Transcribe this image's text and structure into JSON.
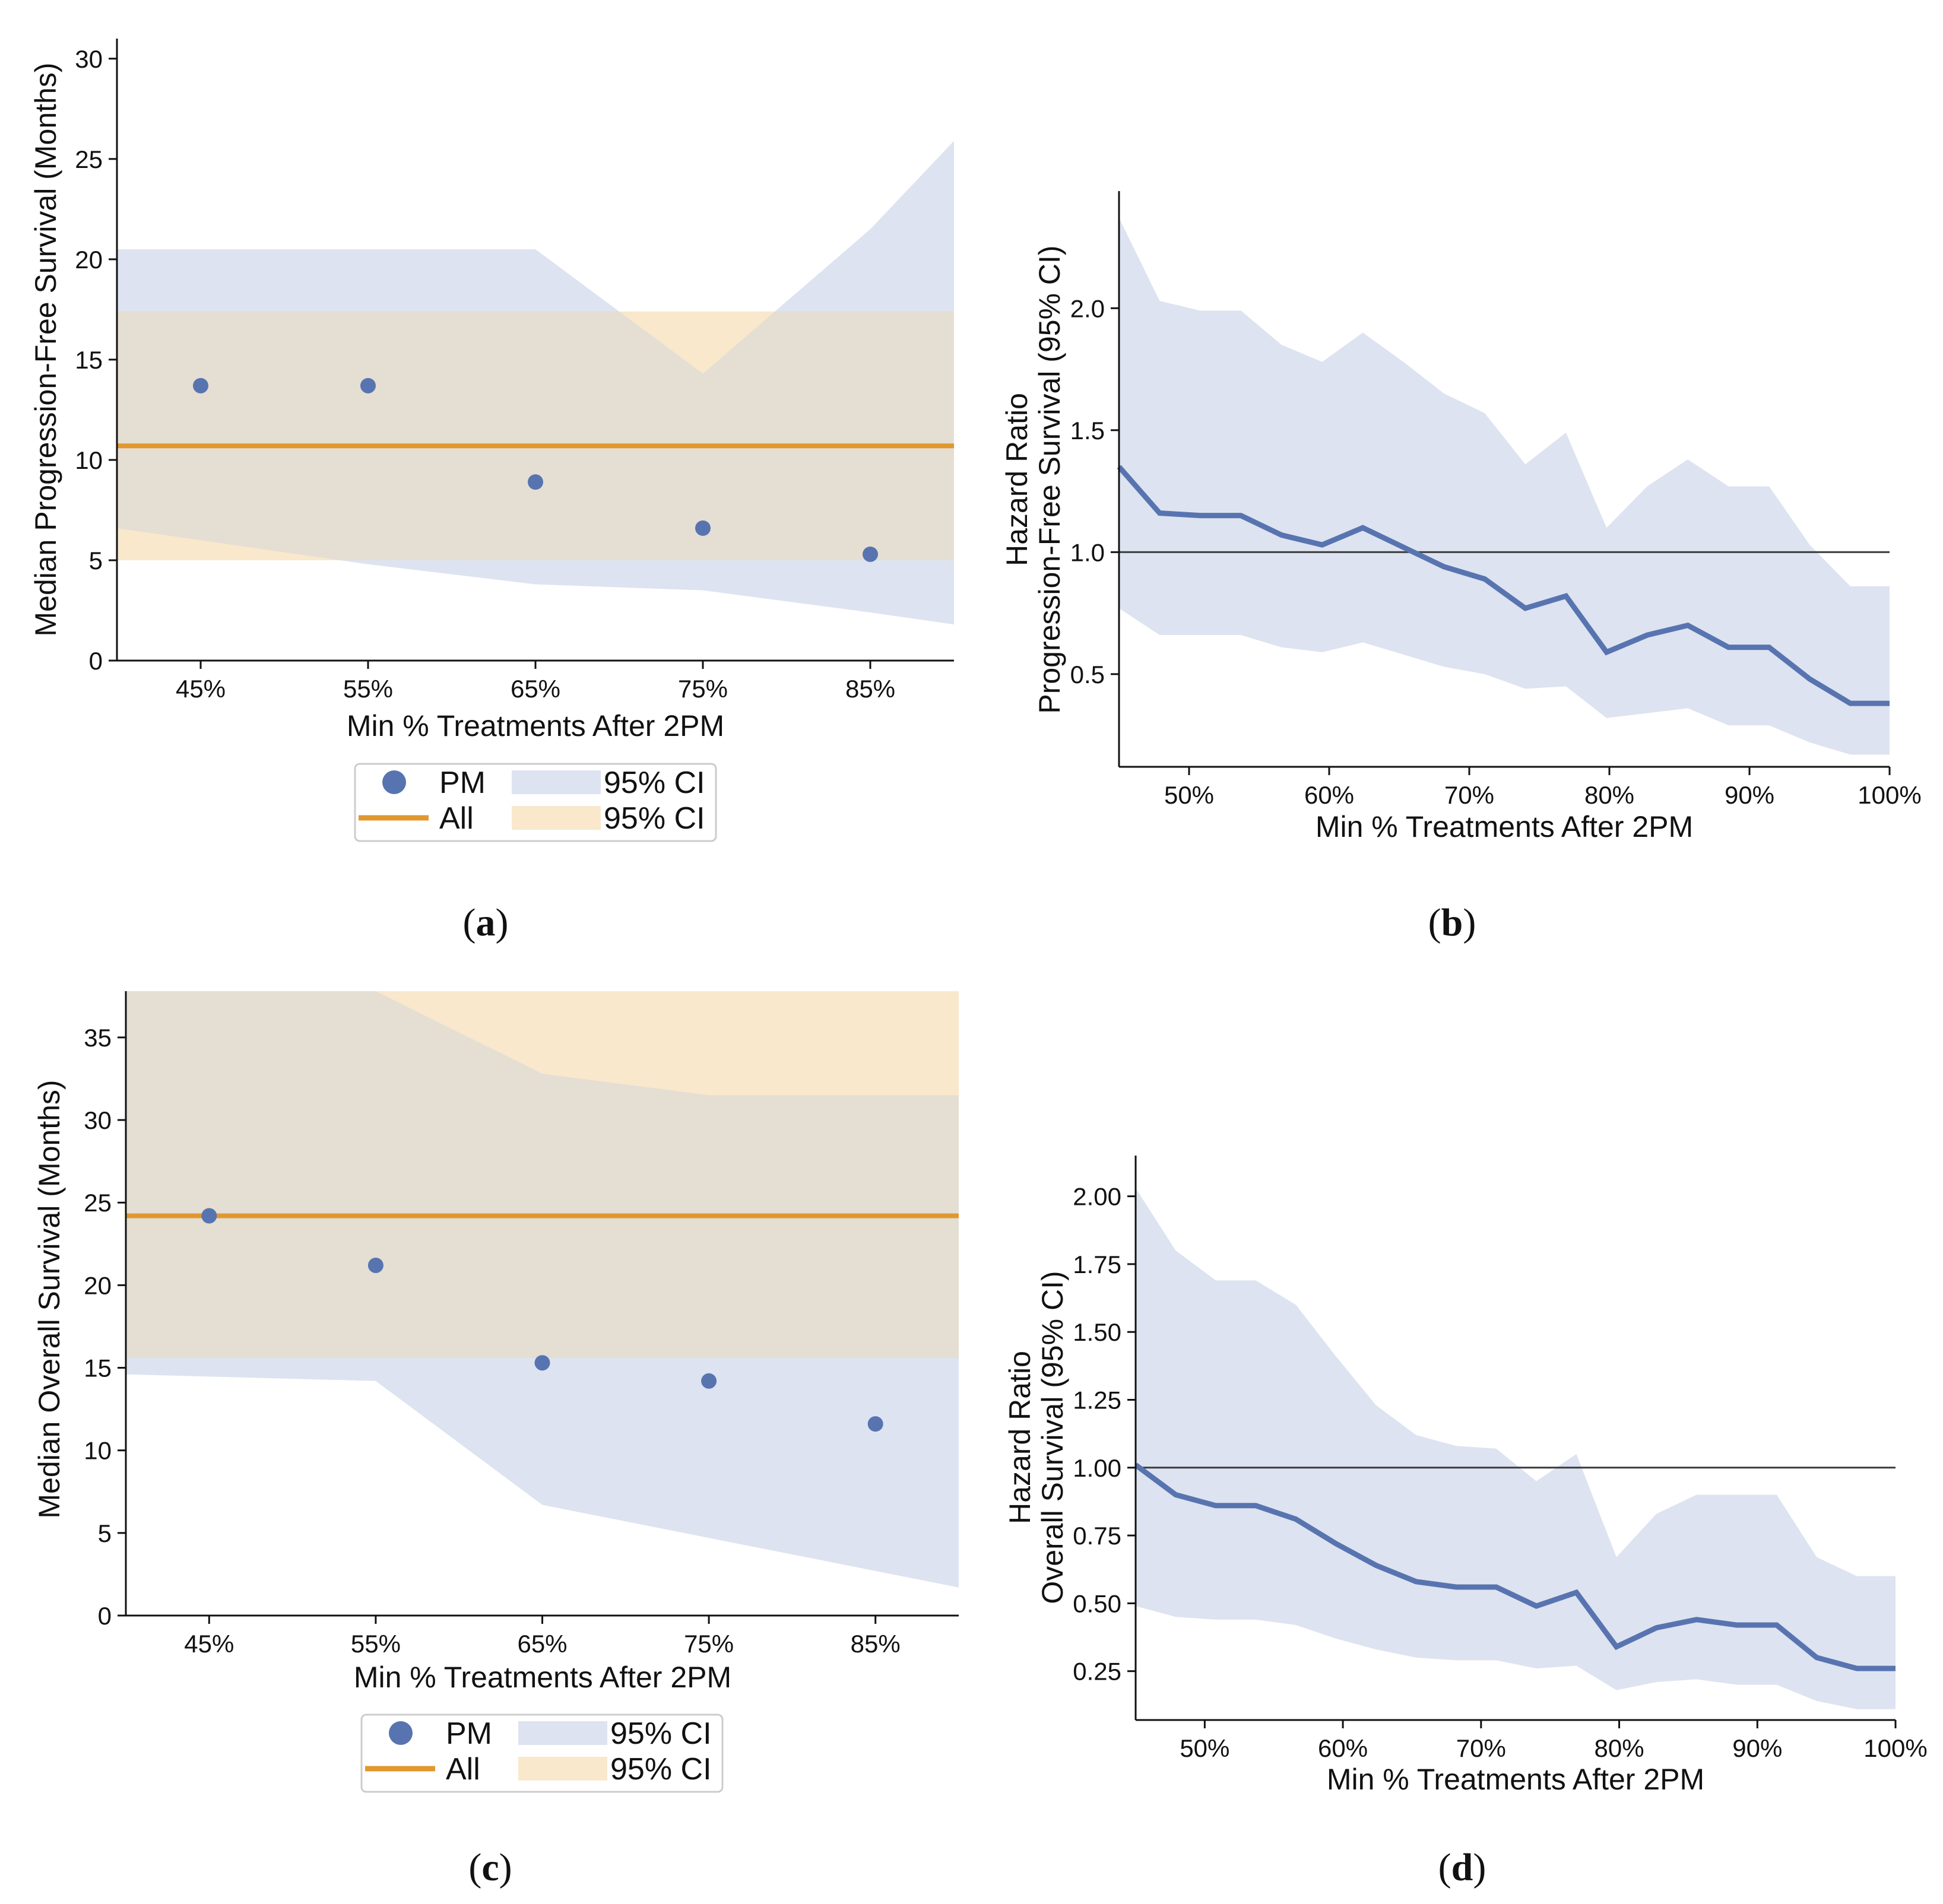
{
  "colors": {
    "pm": "#5874b0",
    "all": "#e0982e",
    "pm_ci": "#dde3f0",
    "all_ci": "#f9e8cc",
    "overlap": "#e5ded3",
    "ref_line": "#3a3a3a",
    "axis": "#111111"
  },
  "chart_data": [
    {
      "id": "a",
      "type": "scatter",
      "caption_letter": "a",
      "xlabel": "Min % Treatments After 2PM",
      "ylabel": "Median Progression-Free Survival (Months)",
      "xlim": [
        40,
        90
      ],
      "ylim": [
        0,
        31
      ],
      "yticks": [
        0,
        5,
        10,
        15,
        20,
        25,
        30
      ],
      "ytick_labels": [
        "0",
        "5",
        "10",
        "15",
        "20",
        "25",
        "30"
      ],
      "xticks": [
        45,
        55,
        65,
        75,
        85
      ],
      "xtick_labels": [
        "45%",
        "55%",
        "65%",
        "75%",
        "85%"
      ],
      "pm_points": {
        "x": [
          45,
          55,
          65,
          75,
          85
        ],
        "y": [
          13.7,
          13.7,
          8.9,
          6.6,
          5.3
        ]
      },
      "pm_ci": {
        "x": [
          40,
          55,
          65,
          75,
          85,
          90
        ],
        "upper": [
          20.5,
          20.5,
          20.5,
          14.3,
          21.5,
          25.9
        ],
        "lower": [
          6.6,
          4.8,
          3.8,
          3.5,
          2.4,
          1.8
        ]
      },
      "all_value": 10.7,
      "all_ci": [
        5.0,
        17.4
      ],
      "legend": [
        {
          "marker": "dot",
          "label": "PM"
        },
        {
          "marker": "pm-patch",
          "label": "95% CI"
        },
        {
          "marker": "line",
          "label": "All"
        },
        {
          "marker": "all-patch",
          "label": "95% CI"
        }
      ]
    },
    {
      "id": "b",
      "type": "line",
      "caption_letter": "b",
      "xlabel": "Min % Treatments After 2PM",
      "ylabel_lines": [
        "Hazard Ratio",
        "Progression-Free Survival (95% CI)"
      ],
      "xlim": [
        45,
        100
      ],
      "ylim": [
        0.12,
        2.48
      ],
      "yticks": [
        0.5,
        1.0,
        1.5,
        2.0
      ],
      "ytick_labels": [
        "0.5",
        "1.0",
        "1.5",
        "2.0"
      ],
      "xticks": [
        50,
        60,
        70,
        80,
        90,
        100
      ],
      "xtick_labels": [
        "50%",
        "60%",
        "70%",
        "80%",
        "90%",
        "100%"
      ],
      "reference": 1.0,
      "x": [
        45,
        47.9,
        50.8,
        53.7,
        56.6,
        59.5,
        62.4,
        65.3,
        68.2,
        71.1,
        74,
        76.9,
        79.8,
        82.7,
        85.6,
        88.5,
        91.4,
        94.3,
        97.2,
        100
      ],
      "hr": [
        1.35,
        1.16,
        1.15,
        1.15,
        1.07,
        1.03,
        1.1,
        1.02,
        0.94,
        0.89,
        0.77,
        0.82,
        0.59,
        0.66,
        0.7,
        0.61,
        0.61,
        0.48,
        0.38,
        0.38
      ],
      "upper": [
        2.37,
        2.03,
        1.99,
        1.99,
        1.85,
        1.78,
        1.9,
        1.78,
        1.65,
        1.57,
        1.36,
        1.49,
        1.1,
        1.27,
        1.38,
        1.27,
        1.27,
        1.03,
        0.86,
        0.86
      ],
      "lower": [
        0.77,
        0.66,
        0.66,
        0.66,
        0.61,
        0.59,
        0.63,
        0.58,
        0.53,
        0.5,
        0.44,
        0.45,
        0.32,
        0.34,
        0.36,
        0.29,
        0.29,
        0.22,
        0.17,
        0.17
      ]
    },
    {
      "id": "c",
      "type": "scatter",
      "caption_letter": "c",
      "xlabel": "Min % Treatments After 2PM",
      "ylabel": "Median Overall Survival (Months)",
      "xlim": [
        40,
        90
      ],
      "ylim": [
        0,
        37.8
      ],
      "yticks": [
        0,
        5,
        10,
        15,
        20,
        25,
        30,
        35
      ],
      "ytick_labels": [
        "0",
        "5",
        "10",
        "15",
        "20",
        "25",
        "30",
        "35"
      ],
      "xticks": [
        45,
        55,
        65,
        75,
        85
      ],
      "xtick_labels": [
        "45%",
        "55%",
        "65%",
        "75%",
        "85%"
      ],
      "pm_points": {
        "x": [
          45,
          55,
          65,
          75,
          85
        ],
        "y": [
          24.2,
          21.2,
          15.3,
          14.2,
          11.6
        ]
      },
      "pm_ci": {
        "x": [
          40,
          55,
          65,
          75,
          85,
          90
        ],
        "upper": [
          37.8,
          37.8,
          32.8,
          31.5,
          31.5,
          31.5
        ],
        "lower": [
          14.6,
          14.2,
          6.7,
          4.7,
          2.7,
          1.7
        ]
      },
      "all_value": 24.2,
      "all_ci": [
        15.6,
        37.8
      ],
      "legend": [
        {
          "marker": "dot",
          "label": "PM"
        },
        {
          "marker": "pm-patch",
          "label": "95% CI"
        },
        {
          "marker": "line",
          "label": "All"
        },
        {
          "marker": "all-patch",
          "label": "95% CI"
        }
      ]
    },
    {
      "id": "d",
      "type": "line",
      "caption_letter": "d",
      "xlabel": "Min % Treatments After 2PM",
      "ylabel_lines": [
        "Hazard Ratio",
        "Overall Survival (95% CI)"
      ],
      "xlim": [
        45,
        100
      ],
      "ylim": [
        0.07,
        2.15
      ],
      "yticks": [
        0.25,
        0.5,
        0.75,
        1.0,
        1.25,
        1.5,
        1.75,
        2.0
      ],
      "ytick_labels": [
        "0.25",
        "0.50",
        "0.75",
        "1.00",
        "1.25",
        "1.50",
        "1.75",
        "2.00"
      ],
      "xticks": [
        50,
        60,
        70,
        80,
        90,
        100
      ],
      "xtick_labels": [
        "50%",
        "60%",
        "70%",
        "80%",
        "90%",
        "100%"
      ],
      "reference": 1.0,
      "x": [
        45,
        47.9,
        50.8,
        53.7,
        56.6,
        59.5,
        62.4,
        65.3,
        68.2,
        71.1,
        74,
        76.9,
        79.8,
        82.7,
        85.6,
        88.5,
        91.4,
        94.3,
        97.2,
        100
      ],
      "hr": [
        1.01,
        0.9,
        0.86,
        0.86,
        0.81,
        0.72,
        0.64,
        0.58,
        0.56,
        0.56,
        0.49,
        0.54,
        0.34,
        0.41,
        0.44,
        0.42,
        0.42,
        0.3,
        0.26,
        0.26
      ],
      "upper": [
        2.03,
        1.8,
        1.69,
        1.69,
        1.6,
        1.41,
        1.23,
        1.12,
        1.08,
        1.07,
        0.95,
        1.05,
        0.67,
        0.83,
        0.9,
        0.9,
        0.9,
        0.67,
        0.6,
        0.6
      ],
      "lower": [
        0.49,
        0.45,
        0.44,
        0.44,
        0.42,
        0.37,
        0.33,
        0.3,
        0.29,
        0.29,
        0.26,
        0.27,
        0.18,
        0.21,
        0.22,
        0.2,
        0.2,
        0.14,
        0.11,
        0.11
      ]
    }
  ]
}
